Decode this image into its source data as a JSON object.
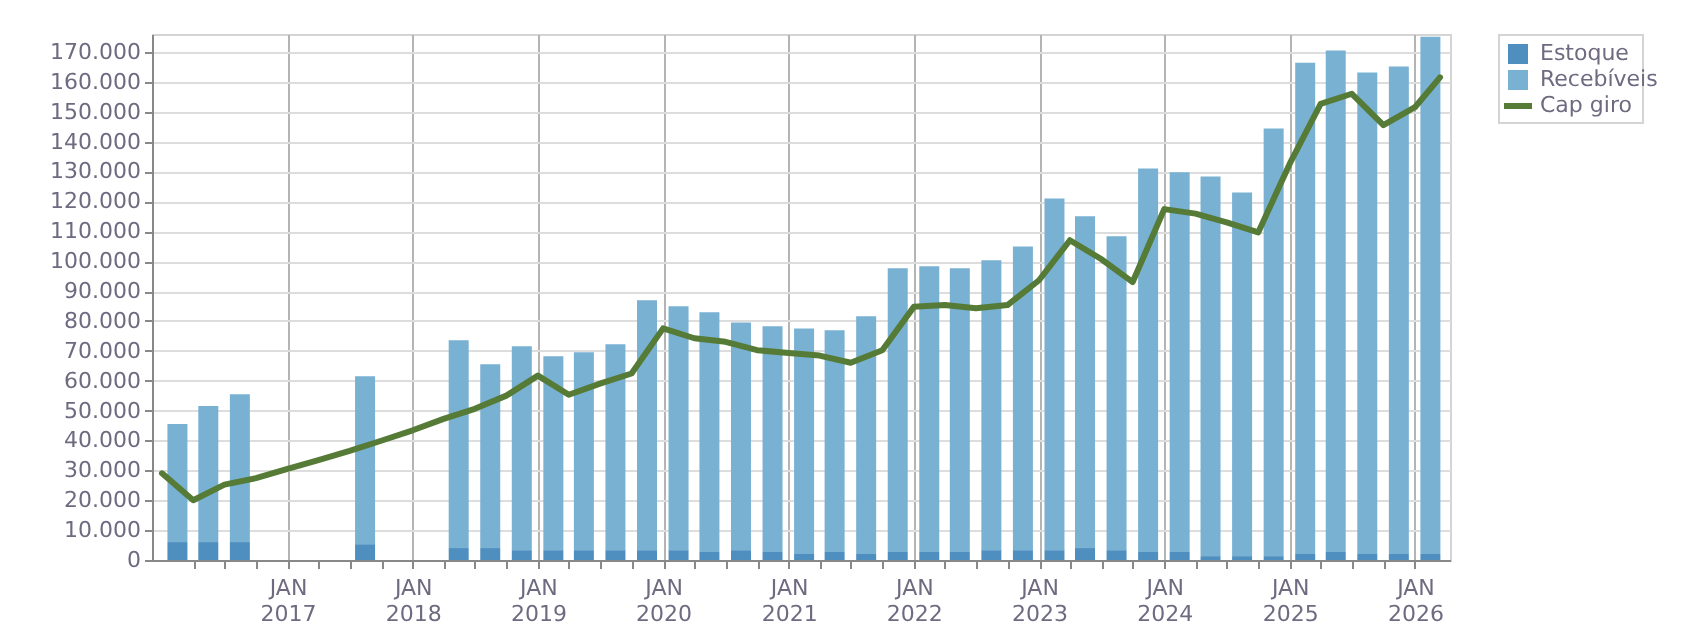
{
  "chart_data": {
    "type": "bar",
    "stacked": true,
    "x": [
      "2016-02-15",
      "2016-05-15",
      "2016-08-15",
      "2017-08-15",
      "2018-05-15",
      "2018-08-15",
      "2018-11-15",
      "2019-02-15",
      "2019-05-15",
      "2019-08-15",
      "2019-11-15",
      "2020-02-15",
      "2020-05-15",
      "2020-08-15",
      "2020-11-15",
      "2021-02-15",
      "2021-05-15",
      "2021-08-15",
      "2021-11-15",
      "2022-02-15",
      "2022-05-15",
      "2022-08-15",
      "2022-11-15",
      "2023-02-15",
      "2023-05-15",
      "2023-08-15",
      "2023-11-15",
      "2024-02-15",
      "2024-05-15",
      "2024-08-15",
      "2024-11-15",
      "2025-02-15",
      "2025-05-15",
      "2025-08-15",
      "2025-11-15",
      "2026-02-15"
    ],
    "series": [
      {
        "name": "Estoque",
        "color": "#4f8fbf",
        "values": [
          6000,
          6000,
          6000,
          5300,
          4000,
          4000,
          3300,
          3300,
          3300,
          3300,
          3300,
          3300,
          2700,
          3300,
          2700,
          2000,
          2700,
          2000,
          2700,
          2700,
          2700,
          3300,
          3300,
          3300,
          4000,
          3300,
          2700,
          2700,
          1300,
          1300,
          1300,
          2000,
          2700,
          2000,
          2000,
          2000
        ]
      },
      {
        "name": "Recebíveis",
        "color": "#79b1d3",
        "values": [
          39500,
          45500,
          49500,
          56200,
          69500,
          61500,
          68200,
          64900,
          66200,
          68900,
          83600,
          81600,
          80200,
          76200,
          75500,
          75500,
          74200,
          79600,
          94900,
          95600,
          94900,
          97000,
          101600,
          117700,
          111000,
          105000,
          128300,
          127000,
          127000,
          121700,
          143100,
          164400,
          167800,
          161100,
          163100,
          173100
        ]
      },
      {
        "name": "Cap giro",
        "type": "line",
        "color": "#557b36",
        "x": [
          "2016-01-01",
          "2016-04-01",
          "2016-07-01",
          "2016-10-01",
          "2017-01-01",
          "2017-04-01",
          "2017-07-01",
          "2017-10-01",
          "2018-01-01",
          "2018-04-01",
          "2018-07-01",
          "2018-10-01",
          "2019-01-01",
          "2019-04-01",
          "2019-07-01",
          "2019-10-01",
          "2020-01-01",
          "2020-04-01",
          "2020-07-01",
          "2020-10-01",
          "2021-01-01",
          "2021-04-01",
          "2021-07-01",
          "2021-10-01",
          "2022-01-01",
          "2022-04-01",
          "2022-07-01",
          "2022-10-01",
          "2023-01-01",
          "2023-04-01",
          "2023-07-01",
          "2023-10-01",
          "2024-01-01",
          "2024-04-01",
          "2024-07-01",
          "2024-10-01",
          "2025-01-01",
          "2025-04-01",
          "2025-07-01",
          "2025-10-01",
          "2026-01-01",
          "2026-03-15"
        ],
        "values": [
          29000,
          20000,
          25200,
          27400,
          30500,
          33400,
          36500,
          39900,
          43400,
          47200,
          50600,
          55000,
          61700,
          55300,
          59000,
          62400,
          77500,
          74200,
          73000,
          70200,
          69300,
          68400,
          66000,
          70200,
          84700,
          85300,
          84200,
          85300,
          93600,
          107000,
          100700,
          93000,
          117400,
          115900,
          113000,
          109600,
          132600,
          152600,
          156000,
          145500,
          151500,
          161500
        ]
      }
    ],
    "xlim": [
      "2016-01-01",
      "2026-03-15"
    ],
    "xticks": [
      {
        "value": "2016-04-01",
        "label": null
      },
      {
        "value": "2016-07-01",
        "label": null
      },
      {
        "value": "2016-10-01",
        "label": null
      },
      {
        "value": "2017-01-01",
        "label": "JAN 2017"
      },
      {
        "value": "2017-04-01",
        "label": null
      },
      {
        "value": "2017-07-01",
        "label": null
      },
      {
        "value": "2017-10-01",
        "label": null
      },
      {
        "value": "2018-01-01",
        "label": "JAN 2018"
      },
      {
        "value": "2018-04-01",
        "label": null
      },
      {
        "value": "2018-07-01",
        "label": null
      },
      {
        "value": "2018-10-01",
        "label": null
      },
      {
        "value": "2019-01-01",
        "label": "JAN 2019"
      },
      {
        "value": "2019-04-01",
        "label": null
      },
      {
        "value": "2019-07-01",
        "label": null
      },
      {
        "value": "2019-10-01",
        "label": null
      },
      {
        "value": "2020-01-01",
        "label": "JAN 2020"
      },
      {
        "value": "2020-04-01",
        "label": null
      },
      {
        "value": "2020-07-01",
        "label": null
      },
      {
        "value": "2020-10-01",
        "label": null
      },
      {
        "value": "2021-01-01",
        "label": "JAN 2021"
      },
      {
        "value": "2021-04-01",
        "label": null
      },
      {
        "value": "2021-07-01",
        "label": null
      },
      {
        "value": "2021-10-01",
        "label": null
      },
      {
        "value": "2022-01-01",
        "label": "JAN 2022"
      },
      {
        "value": "2022-04-01",
        "label": null
      },
      {
        "value": "2022-07-01",
        "label": null
      },
      {
        "value": "2022-10-01",
        "label": null
      },
      {
        "value": "2023-01-01",
        "label": "JAN 2023"
      },
      {
        "value": "2023-04-01",
        "label": null
      },
      {
        "value": "2023-07-01",
        "label": null
      },
      {
        "value": "2023-10-01",
        "label": null
      },
      {
        "value": "2024-01-01",
        "label": "JAN 2024"
      },
      {
        "value": "2024-04-01",
        "label": null
      },
      {
        "value": "2024-07-01",
        "label": null
      },
      {
        "value": "2024-10-01",
        "label": null
      },
      {
        "value": "2025-01-01",
        "label": "JAN 2025"
      },
      {
        "value": "2025-04-01",
        "label": null
      },
      {
        "value": "2025-07-01",
        "label": null
      },
      {
        "value": "2025-10-01",
        "label": null
      },
      {
        "value": "2026-01-01",
        "label": "JAN 2026"
      }
    ],
    "ylim": [
      0,
      176000
    ],
    "yticks": [
      {
        "value": 0,
        "label": "0"
      },
      {
        "value": 10000,
        "label": "10.000"
      },
      {
        "value": 20000,
        "label": "20.000"
      },
      {
        "value": 30000,
        "label": "30.000"
      },
      {
        "value": 40000,
        "label": "40.000"
      },
      {
        "value": 50000,
        "label": "50.000"
      },
      {
        "value": 60000,
        "label": "60.000"
      },
      {
        "value": 70000,
        "label": "70.000"
      },
      {
        "value": 80000,
        "label": "80.000"
      },
      {
        "value": 90000,
        "label": "90.000"
      },
      {
        "value": 100000,
        "label": "100.000"
      },
      {
        "value": 110000,
        "label": "110.000"
      },
      {
        "value": 120000,
        "label": "120.000"
      },
      {
        "value": 130000,
        "label": "130.000"
      },
      {
        "value": 140000,
        "label": "140.000"
      },
      {
        "value": 150000,
        "label": "150.000"
      },
      {
        "value": 160000,
        "label": "160.000"
      },
      {
        "value": 170000,
        "label": "170.000"
      }
    ],
    "grid": true,
    "legend": "top right",
    "marker": "none",
    "line_style": "solid"
  }
}
